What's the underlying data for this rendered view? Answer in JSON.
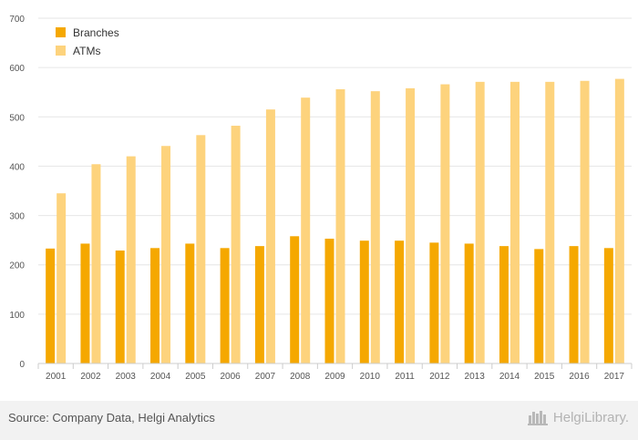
{
  "chart_data": {
    "type": "bar",
    "title": "",
    "xlabel": "",
    "ylabel": "",
    "ylim": [
      0,
      700
    ],
    "yticks": [
      0,
      100,
      200,
      300,
      400,
      500,
      600,
      700
    ],
    "categories": [
      "2001",
      "2002",
      "2003",
      "2004",
      "2005",
      "2006",
      "2007",
      "2008",
      "2009",
      "2010",
      "2011",
      "2012",
      "2013",
      "2014",
      "2015",
      "2016",
      "2017"
    ],
    "series": [
      {
        "name": "Branches",
        "color": "#f5a800",
        "values": [
          233,
          243,
          229,
          234,
          243,
          234,
          238,
          258,
          253,
          249,
          249,
          245,
          243,
          238,
          232,
          238,
          234
        ]
      },
      {
        "name": "ATMs",
        "color": "#fdd37d",
        "values": [
          345,
          404,
          420,
          441,
          463,
          482,
          515,
          539,
          556,
          552,
          558,
          566,
          571,
          571,
          571,
          573,
          577
        ]
      }
    ],
    "grid": true,
    "legend": "top-left"
  },
  "footer": {
    "source": "Source: Company Data, Helgi Analytics",
    "logo_text": "HelgiLibrary."
  }
}
